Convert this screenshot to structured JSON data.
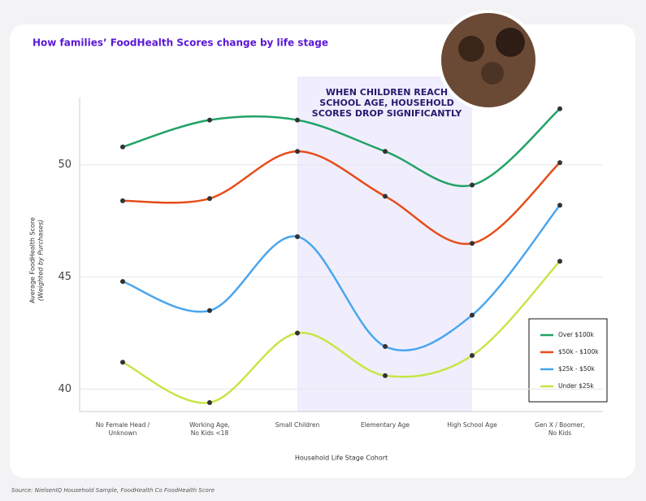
{
  "chart_data": {
    "type": "line",
    "title": "How families’ FoodHealth Scores change by life stage",
    "annotation": [
      "WHEN CHILDREN REACH",
      "SCHOOL AGE, HOUSEHOLD",
      "SCORES DROP SIGNIFICANTLY"
    ],
    "y_label": "Average FoodHealth Score",
    "y_label_sub": "(Weighted by Purchases)",
    "x_label": "Household Life Stage Cohort",
    "source": "Source: NielsenIQ Household Sample, FoodHealth Co FoodHealth Score",
    "categories": [
      [
        "No Female Head /",
        "Unknown"
      ],
      [
        "Working Age,",
        "No Kids <18"
      ],
      [
        "Small Children"
      ],
      [
        "Elementary Age"
      ],
      [
        "High School Age"
      ],
      [
        "Gen X / Boomer,",
        "No Kids"
      ]
    ],
    "series": [
      {
        "name": "Over $100k",
        "color": "#21a366",
        "values": [
          50.8,
          52.0,
          52.0,
          50.6,
          49.1,
          52.5
        ]
      },
      {
        "name": "$50k - $100k",
        "color": "#e64d1a",
        "values": [
          48.4,
          48.5,
          50.6,
          48.6,
          46.5,
          50.1
        ]
      },
      {
        "name": "$25k - $50k",
        "color": "#4aa6ef",
        "values": [
          44.8,
          43.5,
          46.8,
          41.9,
          43.3,
          48.2
        ]
      },
      {
        "name": "Under $25k",
        "color": "#c5e647",
        "values": [
          41.2,
          39.4,
          42.5,
          40.6,
          41.5,
          45.7
        ]
      }
    ],
    "ylim": [
      39,
      53
    ],
    "yticks": [
      40,
      45,
      50
    ],
    "grid": true,
    "legend": "lower right"
  }
}
